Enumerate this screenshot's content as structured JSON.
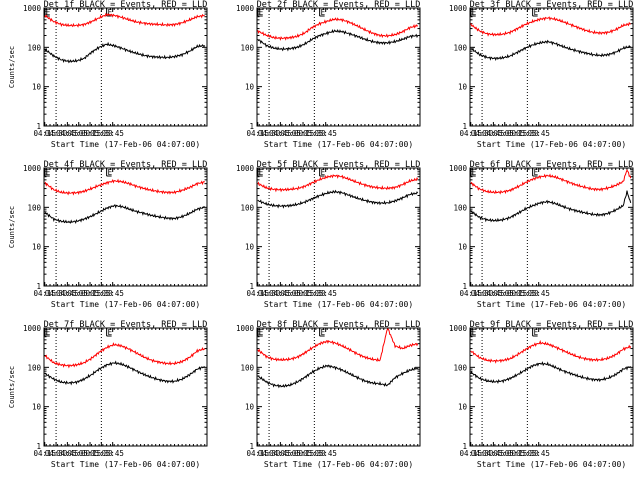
{
  "figure": {
    "x_tick_labels": [
      "04:15",
      "04:30",
      "04:45",
      "05:00",
      "05:15",
      "05:30",
      "05:45"
    ],
    "y_tick_labels": [
      "1",
      "10",
      "100",
      "1000"
    ],
    "x_label": "Start Time (17-Feb-06 04:07:00)",
    "y_label": "Counts/sec",
    "marker_label": "E",
    "colors": {
      "events": "#000000",
      "lld": "#ff0000",
      "axes": "#000000",
      "background": "#ffffff"
    }
  },
  "chart_data": [
    {
      "type": "line",
      "title": "Det 1f BLACK = Events, RED = LLD",
      "xlabel": "Start Time (17-Feb-06 04:07:00)",
      "ylabel": "Counts/sec",
      "x_range_min": [
        7,
        223
      ],
      "ylim": [
        1,
        1000
      ],
      "y_scale": "log",
      "dotted_vlines_min": [
        23,
        83
      ],
      "markers": [
        {
          "x_min": 8,
          "label": "E"
        },
        {
          "x_min": 90,
          "label": "E"
        }
      ],
      "x": [
        8,
        20,
        30,
        40,
        50,
        60,
        70,
        80,
        90,
        100,
        110,
        120,
        130,
        140,
        150,
        160,
        170,
        180,
        190,
        200,
        210,
        220
      ],
      "series": [
        {
          "name": "Events",
          "color": "#000000",
          "values": [
            90,
            60,
            48,
            44,
            45,
            52,
            75,
            100,
            120,
            110,
            95,
            80,
            70,
            62,
            58,
            56,
            55,
            58,
            65,
            80,
            105,
            112
          ]
        },
        {
          "name": "LLD",
          "color": "#ff0000",
          "values": [
            650,
            450,
            380,
            360,
            360,
            380,
            450,
            560,
            680,
            650,
            580,
            500,
            440,
            410,
            390,
            380,
            370,
            380,
            420,
            500,
            600,
            650
          ]
        }
      ]
    },
    {
      "type": "line",
      "title": "Det 2f BLACK = Events, RED = LLD",
      "xlabel": "Start Time (17-Feb-06 04:07:00)",
      "ylabel": "",
      "x_range_min": [
        7,
        223
      ],
      "ylim": [
        1,
        1000
      ],
      "y_scale": "log",
      "dotted_vlines_min": [
        23,
        83
      ],
      "markers": [
        {
          "x_min": 8,
          "label": "E"
        },
        {
          "x_min": 90,
          "label": "E"
        }
      ],
      "x": [
        8,
        20,
        30,
        40,
        50,
        60,
        70,
        80,
        90,
        100,
        110,
        120,
        130,
        140,
        150,
        160,
        170,
        180,
        190,
        200,
        210,
        220
      ],
      "series": [
        {
          "name": "Events",
          "color": "#000000",
          "values": [
            160,
            110,
            95,
            90,
            92,
            100,
            120,
            160,
            200,
            230,
            260,
            250,
            220,
            190,
            160,
            140,
            130,
            130,
            140,
            160,
            190,
            200
          ]
        },
        {
          "name": "LLD",
          "color": "#ff0000",
          "values": [
            260,
            200,
            175,
            170,
            175,
            190,
            230,
            320,
            400,
            460,
            520,
            500,
            430,
            350,
            280,
            230,
            200,
            195,
            210,
            250,
            320,
            360
          ]
        }
      ]
    },
    {
      "type": "line",
      "title": "Det 3f BLACK = Events, RED = LLD",
      "xlabel": "Start Time (17-Feb-06 04:07:00)",
      "ylabel": "",
      "x_range_min": [
        7,
        223
      ],
      "ylim": [
        1,
        1000
      ],
      "y_scale": "log",
      "dotted_vlines_min": [
        23,
        83
      ],
      "markers": [
        {
          "x_min": 8,
          "label": "E"
        },
        {
          "x_min": 90,
          "label": "E"
        }
      ],
      "x": [
        8,
        20,
        30,
        40,
        50,
        60,
        70,
        80,
        90,
        100,
        110,
        120,
        130,
        140,
        150,
        160,
        170,
        180,
        190,
        200,
        210,
        220
      ],
      "series": [
        {
          "name": "Events",
          "color": "#000000",
          "values": [
            95,
            65,
            55,
            52,
            54,
            60,
            75,
            95,
            115,
            130,
            140,
            125,
            105,
            90,
            80,
            72,
            65,
            62,
            65,
            75,
            95,
            105
          ]
        },
        {
          "name": "LLD",
          "color": "#ff0000",
          "values": [
            380,
            260,
            220,
            210,
            215,
            240,
            300,
            380,
            450,
            520,
            560,
            520,
            450,
            380,
            320,
            270,
            240,
            230,
            240,
            280,
            360,
            400
          ]
        }
      ]
    },
    {
      "type": "line",
      "title": "Det 4f BLACK = Events, RED = LLD",
      "xlabel": "Start Time (17-Feb-06 04:07:00)",
      "ylabel": "Counts/sec",
      "x_range_min": [
        7,
        223
      ],
      "ylim": [
        1,
        1000
      ],
      "y_scale": "log",
      "dotted_vlines_min": [
        23,
        83
      ],
      "markers": [
        {
          "x_min": 8,
          "label": "E"
        },
        {
          "x_min": 90,
          "label": "E"
        }
      ],
      "x": [
        8,
        20,
        30,
        40,
        50,
        60,
        70,
        80,
        90,
        100,
        110,
        120,
        130,
        140,
        150,
        160,
        170,
        180,
        190,
        200,
        210,
        220
      ],
      "series": [
        {
          "name": "Events",
          "color": "#000000",
          "values": [
            75,
            50,
            44,
            42,
            44,
            50,
            60,
            75,
            95,
            110,
            105,
            90,
            78,
            70,
            62,
            57,
            53,
            52,
            58,
            70,
            90,
            100
          ]
        },
        {
          "name": "LLD",
          "color": "#ff0000",
          "values": [
            420,
            280,
            240,
            230,
            235,
            255,
            300,
            360,
            420,
            470,
            450,
            400,
            340,
            300,
            270,
            250,
            240,
            240,
            270,
            320,
            400,
            440
          ]
        }
      ]
    },
    {
      "type": "line",
      "title": "Det 5f BLACK = Events, RED = LLD",
      "xlabel": "Start Time (17-Feb-06 04:07:00)",
      "ylabel": "",
      "x_range_min": [
        7,
        223
      ],
      "ylim": [
        1,
        1000
      ],
      "y_scale": "log",
      "dotted_vlines_min": [
        23,
        83
      ],
      "markers": [
        {
          "x_min": 8,
          "label": "E"
        },
        {
          "x_min": 90,
          "label": "E"
        }
      ],
      "x": [
        8,
        20,
        30,
        40,
        50,
        60,
        70,
        80,
        90,
        100,
        110,
        120,
        130,
        140,
        150,
        160,
        170,
        180,
        190,
        200,
        210,
        220
      ],
      "series": [
        {
          "name": "Events",
          "color": "#000000",
          "values": [
            150,
            120,
            110,
            108,
            110,
            118,
            135,
            165,
            200,
            230,
            250,
            235,
            200,
            170,
            150,
            135,
            128,
            130,
            145,
            175,
            215,
            230
          ]
        },
        {
          "name": "LLD",
          "color": "#ff0000",
          "values": [
            400,
            310,
            285,
            280,
            285,
            300,
            340,
            420,
            510,
            590,
            640,
            600,
            510,
            430,
            370,
            330,
            310,
            305,
            320,
            380,
            470,
            520
          ]
        }
      ]
    },
    {
      "type": "line",
      "title": "Det 6f BLACK = Events, RED = LLD",
      "xlabel": "Start Time (17-Feb-06 04:07:00)",
      "ylabel": "",
      "x_range_min": [
        7,
        223
      ],
      "ylim": [
        1,
        1000
      ],
      "y_scale": "log",
      "dotted_vlines_min": [
        23,
        83
      ],
      "markers": [
        {
          "x_min": 8,
          "label": "E"
        },
        {
          "x_min": 90,
          "label": "E"
        }
      ],
      "x": [
        8,
        20,
        30,
        40,
        50,
        60,
        70,
        80,
        90,
        100,
        110,
        120,
        130,
        140,
        150,
        160,
        170,
        180,
        190,
        200,
        210,
        215,
        220
      ],
      "series": [
        {
          "name": "Events",
          "color": "#000000",
          "values": [
            80,
            55,
            48,
            46,
            48,
            55,
            70,
            90,
            110,
            130,
            140,
            125,
            105,
            90,
            80,
            72,
            66,
            64,
            70,
            85,
            110,
            250,
            130
          ]
        },
        {
          "name": "LLD",
          "color": "#ff0000",
          "values": [
            420,
            290,
            250,
            240,
            245,
            270,
            330,
            420,
            520,
            600,
            640,
            590,
            500,
            420,
            360,
            320,
            290,
            285,
            310,
            360,
            450,
            900,
            550
          ]
        }
      ]
    },
    {
      "type": "line",
      "title": "Det 7f BLACK = Events, RED = LLD",
      "xlabel": "Start Time (17-Feb-06 04:07:00)",
      "ylabel": "Counts/sec",
      "x_range_min": [
        7,
        223
      ],
      "ylim": [
        1,
        1000
      ],
      "y_scale": "log",
      "dotted_vlines_min": [
        23,
        83
      ],
      "markers": [
        {
          "x_min": 8,
          "label": "E"
        },
        {
          "x_min": 90,
          "label": "E"
        }
      ],
      "x": [
        8,
        20,
        30,
        40,
        50,
        60,
        70,
        80,
        90,
        100,
        110,
        120,
        130,
        140,
        150,
        160,
        170,
        180,
        190,
        200,
        210,
        220
      ],
      "series": [
        {
          "name": "Events",
          "color": "#000000",
          "values": [
            70,
            50,
            42,
            40,
            42,
            50,
            65,
            90,
            115,
            130,
            120,
            100,
            80,
            65,
            55,
            48,
            44,
            44,
            50,
            65,
            90,
            105
          ]
        },
        {
          "name": "LLD",
          "color": "#ff0000",
          "values": [
            200,
            130,
            115,
            110,
            115,
            130,
            170,
            240,
            320,
            380,
            350,
            290,
            230,
            180,
            150,
            135,
            125,
            125,
            140,
            180,
            260,
            300
          ]
        }
      ]
    },
    {
      "type": "line",
      "title": "Det 8f BLACK = Events, RED = LLD",
      "xlabel": "Start Time (17-Feb-06 04:07:00)",
      "ylabel": "",
      "x_range_min": [
        7,
        223
      ],
      "ylim": [
        1,
        1000
      ],
      "y_scale": "log",
      "dotted_vlines_min": [
        23,
        83
      ],
      "markers": [
        {
          "x_min": 8,
          "label": "E"
        },
        {
          "x_min": 90,
          "label": "E"
        }
      ],
      "x": [
        8,
        20,
        30,
        40,
        50,
        60,
        70,
        80,
        90,
        100,
        110,
        120,
        130,
        140,
        150,
        160,
        170,
        180,
        190,
        200,
        210,
        220
      ],
      "series": [
        {
          "name": "Events",
          "color": "#000000",
          "values": [
            60,
            42,
            35,
            33,
            35,
            42,
            55,
            75,
            95,
            110,
            100,
            85,
            68,
            55,
            45,
            40,
            38,
            35,
            55,
            70,
            85,
            95
          ]
        },
        {
          "name": "LLD",
          "color": "#ff0000",
          "values": [
            280,
            185,
            160,
            155,
            160,
            180,
            230,
            310,
            400,
            460,
            420,
            350,
            280,
            220,
            180,
            160,
            150,
            1000,
            350,
            300,
            360,
            400
          ]
        }
      ]
    },
    {
      "type": "line",
      "title": "Det 9f BLACK = Events, RED = LLD",
      "xlabel": "Start Time (17-Feb-06 04:07:00)",
      "ylabel": "",
      "x_range_min": [
        7,
        223
      ],
      "ylim": [
        1,
        1000
      ],
      "y_scale": "log",
      "dotted_vlines_min": [
        23,
        83
      ],
      "markers": [
        {
          "x_min": 8,
          "label": "E"
        },
        {
          "x_min": 90,
          "label": "E"
        }
      ],
      "x": [
        8,
        20,
        30,
        40,
        50,
        60,
        70,
        80,
        90,
        100,
        110,
        120,
        130,
        140,
        150,
        160,
        170,
        180,
        190,
        200,
        210,
        220
      ],
      "series": [
        {
          "name": "Events",
          "color": "#000000",
          "values": [
            75,
            52,
            45,
            43,
            45,
            52,
            65,
            85,
            110,
            125,
            120,
            100,
            82,
            70,
            60,
            53,
            49,
            48,
            53,
            65,
            90,
            105
          ]
        },
        {
          "name": "LLD",
          "color": "#ff0000",
          "values": [
            260,
            175,
            150,
            145,
            150,
            165,
            210,
            280,
            360,
            420,
            390,
            330,
            270,
            220,
            185,
            165,
            155,
            155,
            170,
            210,
            290,
            340
          ]
        }
      ]
    }
  ]
}
